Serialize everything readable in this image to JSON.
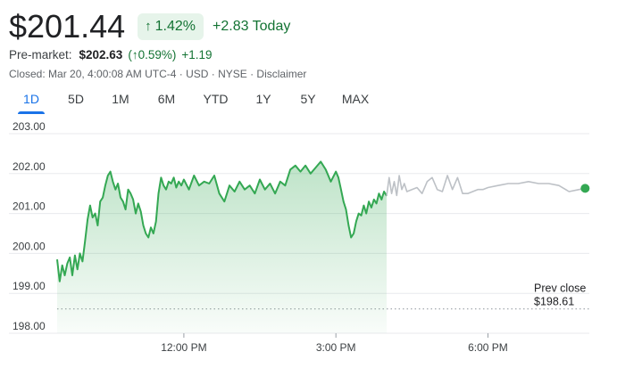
{
  "quote": {
    "price": "$201.44",
    "change_arrow": "↑",
    "change_percent": "1.42%",
    "change_today": "+2.83 Today"
  },
  "premarket": {
    "label": "Pre-market:",
    "price": "$202.63",
    "percent": "(↑0.59%)",
    "delta": "+1.19"
  },
  "status": {
    "text": "Closed: Mar 20, 4:00:08 AM UTC-4 · USD · NYSE · ",
    "disclaimer": "Disclaimer"
  },
  "tabs": [
    {
      "label": "1D",
      "active": true
    },
    {
      "label": "5D",
      "active": false
    },
    {
      "label": "1M",
      "active": false
    },
    {
      "label": "6M",
      "active": false
    },
    {
      "label": "YTD",
      "active": false
    },
    {
      "label": "1Y",
      "active": false
    },
    {
      "label": "5Y",
      "active": false
    },
    {
      "label": "MAX",
      "active": false
    }
  ],
  "colors": {
    "up": "#34a853",
    "up_text": "#137333",
    "after_hours": "#bdc1c6",
    "grid": "#e8eaed",
    "active_tab": "#1a73e8"
  },
  "chart_data": {
    "type": "line",
    "ylim": [
      198.0,
      203.0
    ],
    "yticks": [
      "203.00",
      "202.00",
      "201.00",
      "200.00",
      "199.00",
      "198.00"
    ],
    "ytick_values": [
      203,
      202,
      201,
      200,
      199,
      198
    ],
    "xlim": [
      9.5,
      20.0
    ],
    "xticks": [
      "12:00 PM",
      "3:00 PM",
      "6:00 PM"
    ],
    "xtick_values": [
      12,
      15,
      18
    ],
    "prev_close": {
      "label": "Prev close",
      "value_label": "$198.61",
      "value": 198.61
    },
    "series": [
      {
        "session": "regular",
        "x": [
          9.5,
          9.55,
          9.6,
          9.65,
          9.7,
          9.75,
          9.8,
          9.85,
          9.9,
          9.95,
          10.0,
          10.05,
          10.1,
          10.15,
          10.2,
          10.25,
          10.3,
          10.35,
          10.4,
          10.45,
          10.5,
          10.55,
          10.6,
          10.65,
          10.7,
          10.75,
          10.8,
          10.85,
          10.9,
          10.95,
          11.0,
          11.05,
          11.1,
          11.15,
          11.2,
          11.25,
          11.3,
          11.35,
          11.4,
          11.45,
          11.5,
          11.55,
          11.6,
          11.65,
          11.7,
          11.75,
          11.8,
          11.85,
          11.9,
          11.95,
          12.0,
          12.1,
          12.2,
          12.3,
          12.4,
          12.5,
          12.6,
          12.7,
          12.8,
          12.9,
          13.0,
          13.1,
          13.2,
          13.3,
          13.4,
          13.5,
          13.6,
          13.7,
          13.8,
          13.9,
          14.0,
          14.1,
          14.2,
          14.3,
          14.4,
          14.5,
          14.6,
          14.7,
          14.8,
          14.9,
          15.0,
          15.05,
          15.1,
          15.15,
          15.2,
          15.25,
          15.3,
          15.35,
          15.4,
          15.45,
          15.5,
          15.55,
          15.6,
          15.65,
          15.7,
          15.75,
          15.8,
          15.85,
          15.9,
          15.95,
          16.0
        ],
        "y": [
          199.85,
          199.3,
          199.7,
          199.45,
          199.75,
          199.9,
          199.45,
          199.95,
          199.6,
          200.0,
          199.8,
          200.3,
          200.85,
          201.2,
          200.9,
          201.0,
          200.7,
          201.3,
          201.4,
          201.7,
          201.95,
          202.05,
          201.8,
          201.6,
          201.75,
          201.4,
          201.3,
          201.1,
          201.6,
          201.5,
          201.35,
          201.0,
          201.25,
          201.05,
          200.7,
          200.5,
          200.4,
          200.65,
          200.5,
          200.8,
          201.5,
          201.9,
          201.7,
          201.6,
          201.8,
          201.75,
          201.9,
          201.65,
          201.8,
          201.7,
          201.85,
          201.6,
          201.95,
          201.7,
          201.8,
          201.75,
          201.95,
          201.5,
          201.3,
          201.7,
          201.55,
          201.8,
          201.6,
          201.7,
          201.5,
          201.85,
          201.6,
          201.75,
          201.5,
          201.8,
          201.7,
          202.1,
          202.2,
          202.05,
          202.2,
          202.0,
          202.15,
          202.3,
          202.1,
          201.8,
          202.05,
          201.9,
          201.6,
          201.3,
          201.1,
          200.7,
          200.4,
          200.5,
          200.8,
          201.0,
          200.95,
          201.2,
          201.0,
          201.3,
          201.15,
          201.35,
          201.25,
          201.5,
          201.35,
          201.55,
          201.44
        ]
      },
      {
        "session": "after_hours",
        "x": [
          16.0,
          16.05,
          16.1,
          16.15,
          16.2,
          16.25,
          16.3,
          16.35,
          16.4,
          16.5,
          16.6,
          16.7,
          16.8,
          16.9,
          17.0,
          17.1,
          17.2,
          17.3,
          17.4,
          17.5,
          17.6,
          17.7,
          17.8,
          17.9,
          18.0,
          18.2,
          18.4,
          18.6,
          18.8,
          19.0,
          19.2,
          19.4,
          19.6,
          19.8,
          19.9
        ],
        "y": [
          201.44,
          201.9,
          201.5,
          201.8,
          201.45,
          201.95,
          201.6,
          201.75,
          201.55,
          201.6,
          201.65,
          201.5,
          201.8,
          201.9,
          201.6,
          201.55,
          201.95,
          201.6,
          201.9,
          201.5,
          201.5,
          201.55,
          201.6,
          201.6,
          201.65,
          201.7,
          201.75,
          201.75,
          201.8,
          201.75,
          201.75,
          201.7,
          201.55,
          201.6,
          201.63
        ]
      }
    ]
  }
}
